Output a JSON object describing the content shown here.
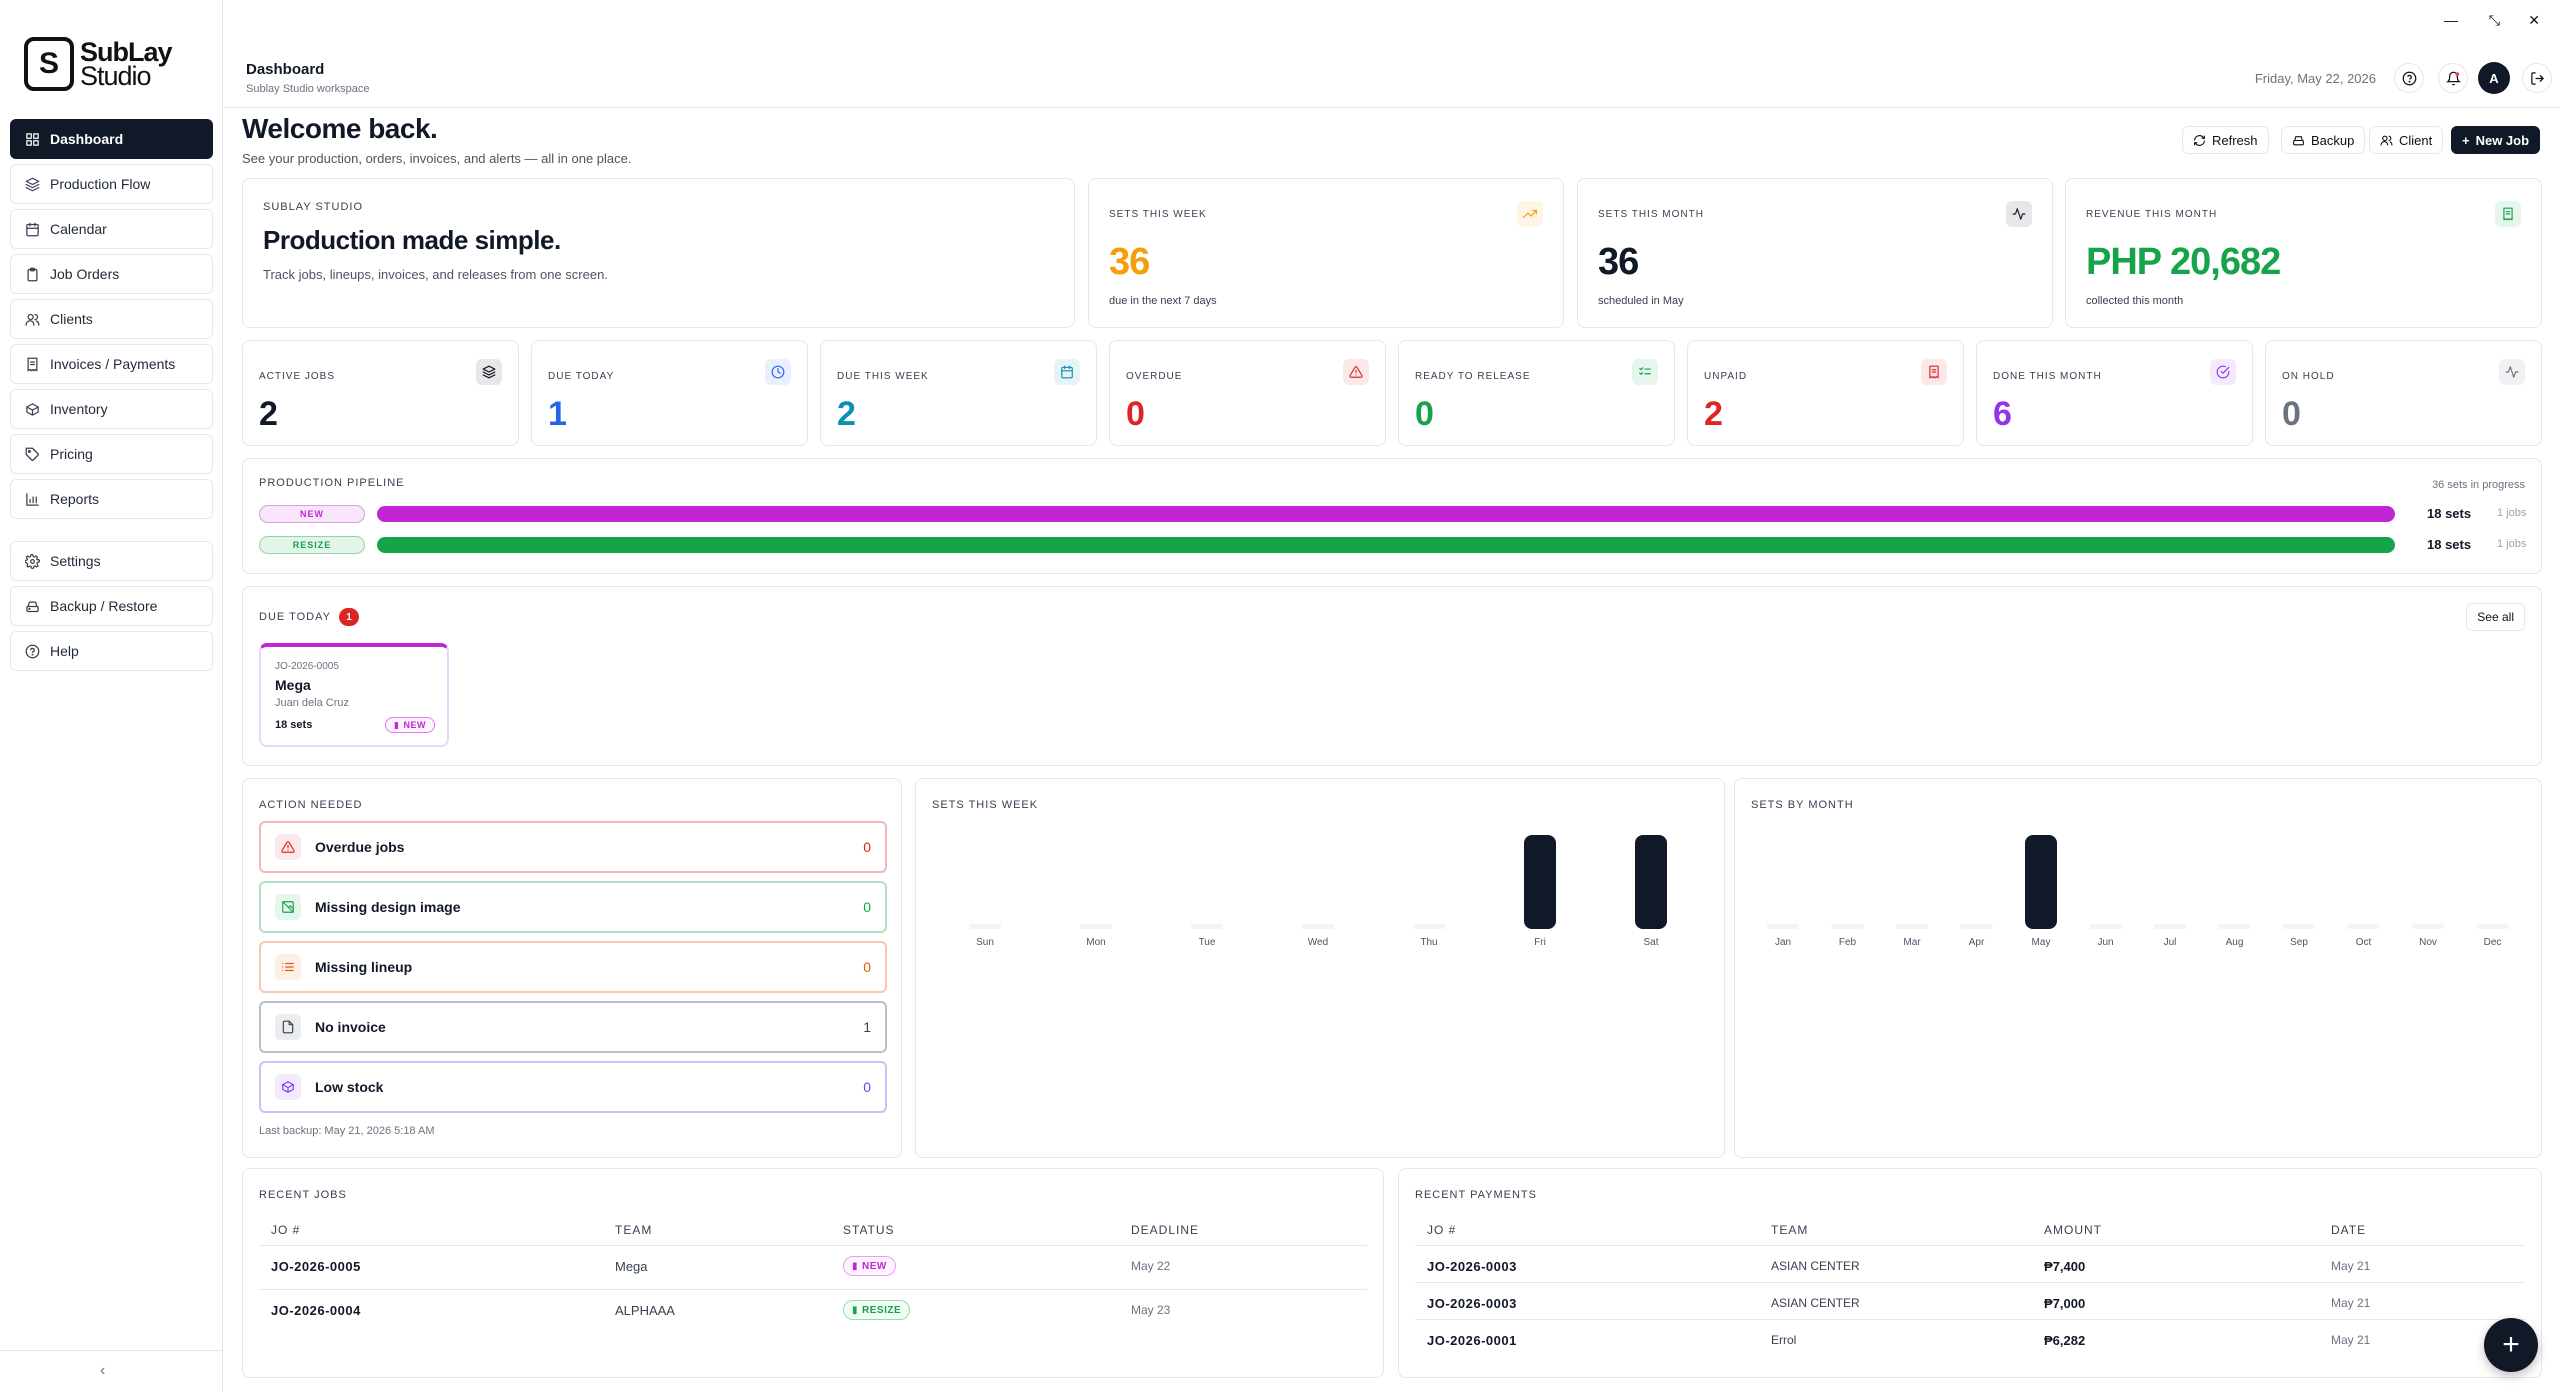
{
  "app": {
    "logo_top": "SubLay",
    "logo_bottom": "Studio",
    "logo_mark": "S"
  },
  "window": {
    "minimize": "—",
    "restore": "⤡",
    "close": "✕"
  },
  "sidebar": {
    "items": [
      {
        "label": "Dashboard",
        "icon": "grid-icon",
        "active": true
      },
      {
        "label": "Production Flow",
        "icon": "layers-icon"
      },
      {
        "label": "Calendar",
        "icon": "calendar-icon"
      },
      {
        "label": "Job Orders",
        "icon": "clipboard-icon"
      },
      {
        "label": "Clients",
        "icon": "users-icon"
      },
      {
        "label": "Invoices / Payments",
        "icon": "receipt-icon"
      },
      {
        "label": "Inventory",
        "icon": "box-icon"
      },
      {
        "label": "Pricing",
        "icon": "tag-icon"
      },
      {
        "label": "Reports",
        "icon": "bar-chart-icon"
      }
    ],
    "secondary": [
      {
        "label": "Settings",
        "icon": "gear-icon"
      },
      {
        "label": "Backup / Restore",
        "icon": "hard-drive-icon"
      },
      {
        "label": "Help",
        "icon": "help-circle-icon"
      }
    ],
    "collapse": "‹"
  },
  "header": {
    "title": "Dashboard",
    "subtitle": "Sublay Studio workspace",
    "date": "Friday, May 22, 2026",
    "avatar": "A"
  },
  "welcome": {
    "title": "Welcome back.",
    "subtitle": "See your production, orders, invoices, and alerts — all in one place."
  },
  "toolbar": {
    "refresh": "Refresh",
    "backup": "Backup",
    "client": "Client",
    "new_job": "New Job"
  },
  "hero": {
    "eyebrow": "SUBLAY STUDIO",
    "title": "Production made simple.",
    "subtitle": "Track jobs, lineups, invoices, and releases from one screen."
  },
  "stats": [
    {
      "label": "SETS THIS WEEK",
      "value": "36",
      "sub": "due in the next 7 days",
      "color": "#f59e0b",
      "icon": "trending-up-icon"
    },
    {
      "label": "SETS THIS MONTH",
      "value": "36",
      "sub": "scheduled in May",
      "color": "#111827",
      "icon": "activity-icon"
    },
    {
      "label": "REVENUE THIS MONTH",
      "value": "PHP 20,682",
      "sub": "collected this month",
      "color": "#16a34a",
      "icon": "receipt-icon"
    }
  ],
  "kpis": [
    {
      "label": "ACTIVE JOBS",
      "value": "2",
      "color": "#111827",
      "icon": "layers-icon"
    },
    {
      "label": "DUE TODAY",
      "value": "1",
      "color": "#2563eb",
      "icon": "clock-icon"
    },
    {
      "label": "DUE THIS WEEK",
      "value": "2",
      "color": "#0891b2",
      "icon": "calendar-icon"
    },
    {
      "label": "OVERDUE",
      "value": "0",
      "color": "#dc2626",
      "icon": "alert-triangle-icon"
    },
    {
      "label": "READY TO RELEASE",
      "value": "0",
      "color": "#16a34a",
      "icon": "list-check-icon"
    },
    {
      "label": "UNPAID",
      "value": "2",
      "color": "#dc2626",
      "icon": "receipt-icon"
    },
    {
      "label": "DONE THIS MONTH",
      "value": "6",
      "color": "#9333ea",
      "icon": "check-circle-icon"
    },
    {
      "label": "ON HOLD",
      "value": "0",
      "color": "#6b7280",
      "icon": "activity-icon"
    }
  ],
  "pipeline": {
    "title": "PRODUCTION PIPELINE",
    "summary": "36 sets in progress",
    "rows": [
      {
        "stage": "NEW",
        "sets": "18 sets",
        "jobs": "1 jobs",
        "color": "#c026d3",
        "fraction": 1.0
      },
      {
        "stage": "RESIZE",
        "sets": "18 sets",
        "jobs": "1 jobs",
        "color": "#16a34a",
        "fraction": 1.0
      }
    ]
  },
  "due_today": {
    "title": "DUE TODAY",
    "count": "1",
    "see_all": "See all",
    "card": {
      "jo": "JO-2026-0005",
      "team": "Mega",
      "client": "Juan dela Cruz",
      "sets": "18 sets",
      "status": "NEW"
    }
  },
  "action_needed": {
    "title": "ACTION NEEDED",
    "items": [
      {
        "label": "Overdue jobs",
        "count": "0",
        "color": "#dc2626",
        "icon": "alert-triangle-icon"
      },
      {
        "label": "Missing design image",
        "count": "0",
        "color": "#16a34a",
        "icon": "image-off-icon"
      },
      {
        "label": "Missing lineup",
        "count": "0",
        "color": "#ea580c",
        "icon": "list-icon"
      },
      {
        "label": "No invoice",
        "count": "1",
        "color": "#374151",
        "icon": "file-icon"
      },
      {
        "label": "Low stock",
        "count": "0",
        "color": "#7c3aed",
        "icon": "box-icon"
      }
    ],
    "last_backup": "Last backup: May 21, 2026 5:18 AM"
  },
  "sets_week_title": "SETS THIS WEEK",
  "sets_month_title": "SETS BY MONTH",
  "chart_data": [
    {
      "type": "bar",
      "title": "SETS THIS WEEK",
      "categories": [
        "Sun",
        "Mon",
        "Tue",
        "Wed",
        "Thu",
        "Fri",
        "Sat"
      ],
      "values": [
        0,
        0,
        0,
        0,
        0,
        18,
        18
      ],
      "ylim": [
        0,
        18
      ]
    },
    {
      "type": "bar",
      "title": "SETS BY MONTH",
      "categories": [
        "Jan",
        "Feb",
        "Mar",
        "Apr",
        "May",
        "Jun",
        "Jul",
        "Aug",
        "Sep",
        "Oct",
        "Nov",
        "Dec"
      ],
      "values": [
        0,
        0,
        0,
        0,
        36,
        0,
        0,
        0,
        0,
        0,
        0,
        0
      ],
      "ylim": [
        0,
        36
      ]
    }
  ],
  "recent_jobs": {
    "title": "RECENT JOBS",
    "columns": [
      "JO #",
      "TEAM",
      "STATUS",
      "DEADLINE"
    ],
    "rows": [
      {
        "jo": "JO-2026-0005",
        "team": "Mega",
        "status": "NEW",
        "deadline": "May 22"
      },
      {
        "jo": "JO-2026-0004",
        "team": "ALPHAAA",
        "status": "RESIZE",
        "deadline": "May 23"
      }
    ]
  },
  "recent_payments": {
    "title": "RECENT PAYMENTS",
    "columns": [
      "JO #",
      "TEAM",
      "AMOUNT",
      "DATE"
    ],
    "rows": [
      {
        "jo": "JO-2026-0003",
        "team": "ASIAN CENTER",
        "amount": "₱7,400",
        "date": "May 21"
      },
      {
        "jo": "JO-2026-0003",
        "team": "ASIAN CENTER",
        "amount": "₱7,000",
        "date": "May 21"
      },
      {
        "jo": "JO-2026-0001",
        "team": "Errol",
        "amount": "₱6,282",
        "date": "May 21"
      }
    ]
  },
  "fab": "+"
}
